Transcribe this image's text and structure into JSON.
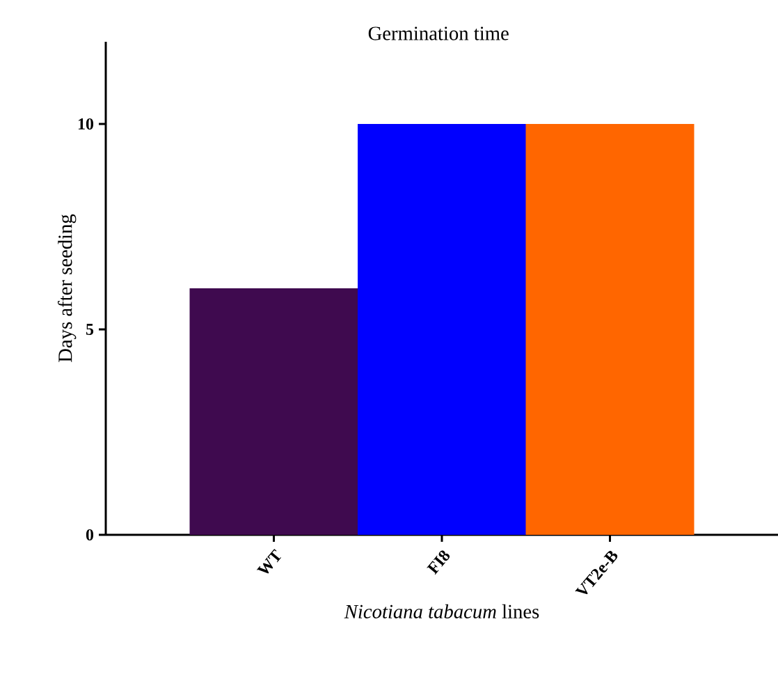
{
  "chart_data": {
    "type": "bar",
    "title": "Germination time",
    "xlabel": "*Nicotiana tabacum* lines",
    "ylabel": "Days after seeding",
    "categories": [
      "WT",
      "FI8",
      "VT2e-B"
    ],
    "values": [
      6,
      10,
      10
    ],
    "colors": [
      "#3f0a4f",
      "#0000ff",
      "#ff6600"
    ],
    "ylim": [
      0,
      12
    ],
    "yticks": [
      0,
      5,
      10
    ],
    "grid": false
  }
}
